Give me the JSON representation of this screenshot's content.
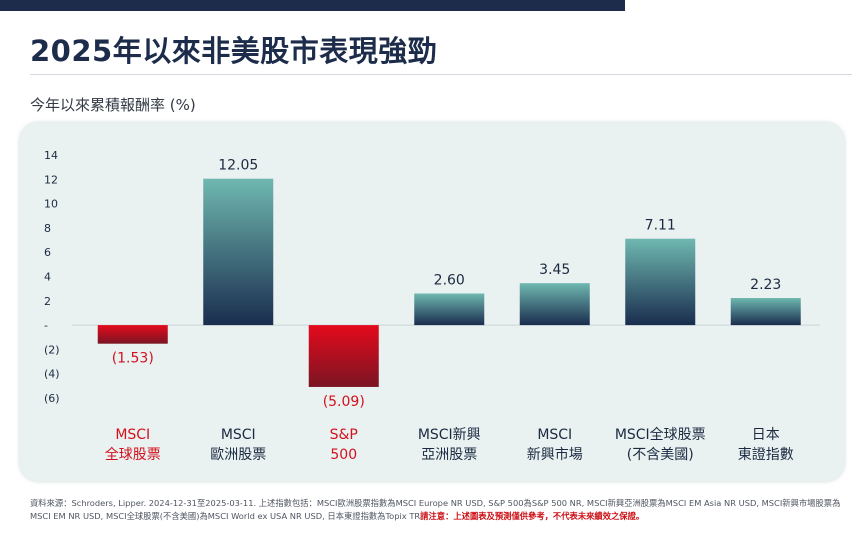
{
  "header": {
    "title": "2025年以來非美股市表現強勁",
    "subtitle": "今年以來累積報酬率 (%)"
  },
  "chart_data": {
    "type": "bar",
    "categories": [
      "MSCI\n全球股票",
      "MSCI\n歐洲股票",
      "S&P\n500",
      "MSCI新興\n亞洲股票",
      "MSCI\n新興市場",
      "MSCI全球股票\n(不含美國)",
      "日本\n東證指數"
    ],
    "values": [
      -1.53,
      12.05,
      -5.09,
      2.6,
      3.45,
      7.11,
      2.23
    ],
    "value_labels": [
      "(1.53)",
      "12.05",
      "(5.09)",
      "2.60",
      "3.45",
      "7.11",
      "2.23"
    ],
    "highlighted": [
      true,
      false,
      true,
      false,
      false,
      false,
      false
    ],
    "ylim": [
      -6,
      14
    ],
    "yticks": [
      14,
      12,
      10,
      8,
      6,
      4,
      2,
      0,
      -2,
      -4,
      -6
    ],
    "ytick_labels": [
      "14",
      "12",
      "10",
      "8",
      "6",
      "4",
      "2",
      "-",
      "(2)",
      "(4)",
      "(6)"
    ],
    "title": "",
    "xlabel": "",
    "ylabel": "",
    "grid": false,
    "colors": {
      "positive_top": "#6fb8b0",
      "positive_bottom": "#1a2d4e",
      "negative_top": "#e40a1c",
      "negative_bottom": "#7a1523",
      "negative_text": "#d3111d",
      "text": "#1b2a41"
    }
  },
  "footnote": {
    "text": "資料來源：Schroders, Lipper. 2024-12-31至2025-03-11. 上述指數包括：MSCI歐洲股票指數為MSCI Europe NR USD, S&P 500為S&P 500 NR, MSCI新興亞洲股票為MSCI EM Asia NR USD, MSCI新興市場股票為MSCI EM NR USD, MSCI全球股票(不含美國)為MSCI World ex USA NR USD, 日本東證指數為Topix TR",
    "warning": "請注意：上述圖表及預測僅供參考，不代表未來績效之保證。"
  }
}
